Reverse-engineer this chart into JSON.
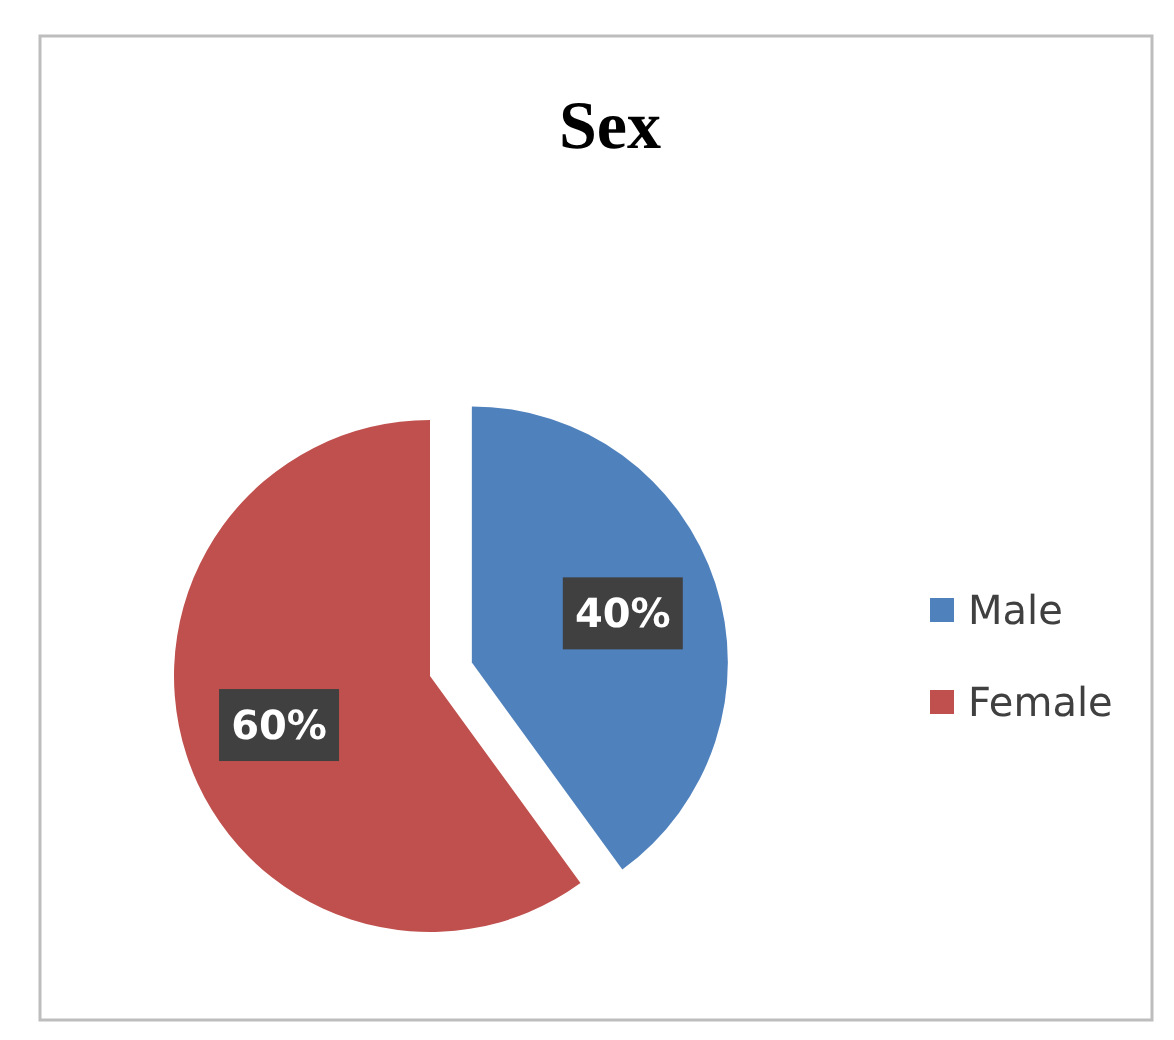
{
  "chart_data": {
    "type": "pie",
    "title": "Sex",
    "categories": [
      "Male",
      "Female"
    ],
    "values": [
      40,
      60
    ],
    "colors": [
      "#4f81bd",
      "#c0504d"
    ],
    "value_labels": [
      "40%",
      "60%"
    ],
    "legend": "right"
  }
}
